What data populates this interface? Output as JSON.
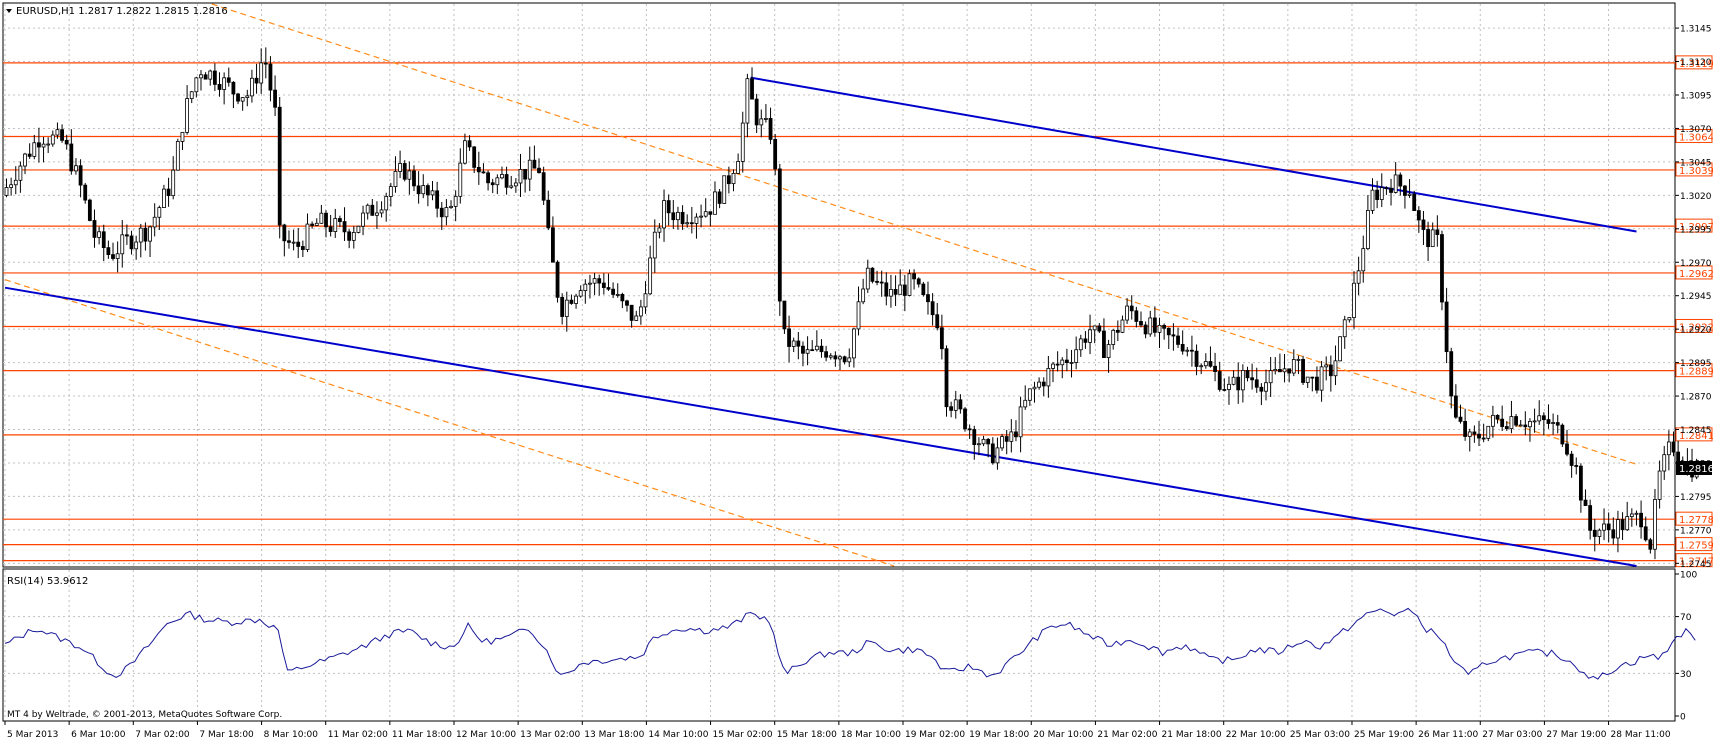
{
  "chart_info": "EURUSD,H1  1.2817 1.2822 1.2815 1.2816",
  "rsi_info": "RSI(14) 53.9612",
  "watermark": "MT 4 by Weltrade, © 2001-2013, MetaQuotes Software Corp.",
  "colors": {
    "background": "#ffffff",
    "grid": "#c0c0c0",
    "candle": "#000000",
    "level_line": "#ff4400",
    "level_label": "#ff4400",
    "channel_line": "#0000cc",
    "fib_line": "#ff8c1a",
    "rsi_line": "#1a1a99",
    "price_badge": "#000000"
  },
  "chart_data": [
    {
      "type": "candlestick",
      "title": "EURUSD,H1",
      "symbol": "EURUSD",
      "timeframe": "H1",
      "ohlc_current": {
        "open": 1.2817,
        "high": 1.2822,
        "low": 1.2815,
        "close": 1.2816
      },
      "current_price": "1.2816",
      "ylim": [
        1.2743,
        1.3163
      ],
      "x_range": [
        0,
        1080
      ],
      "y_ticks": [
        "1.3145",
        "1.3120",
        "1.3095",
        "1.3070",
        "1.3045",
        "1.3020",
        "1.2995",
        "1.2970",
        "1.2945",
        "1.2920",
        "1.2895",
        "1.2870",
        "1.2845",
        "1.2820",
        "1.2795",
        "1.2770",
        "1.2745"
      ],
      "x_tick_labels": [
        "5 Mar 2013",
        "6 Mar 10:00",
        "7 Mar 02:00",
        "7 Mar 18:00",
        "8 Mar 10:00",
        "11 Mar 02:00",
        "11 Mar 18:00",
        "12 Mar 10:00",
        "13 Mar 02:00",
        "13 Mar 18:00",
        "14 Mar 10:00",
        "15 Mar 02:00",
        "15 Mar 18:00",
        "18 Mar 10:00",
        "19 Mar 02:00",
        "19 Mar 18:00",
        "20 Mar 10:00",
        "21 Mar 02:00",
        "21 Mar 18:00",
        "22 Mar 10:00",
        "25 Mar 03:00",
        "25 Mar 19:00",
        "26 Mar 11:00",
        "27 Mar 03:00",
        "27 Mar 19:00",
        "28 Mar 11:00"
      ],
      "grid": true,
      "horizontal_levels": [
        "1.3119",
        "1.3064",
        "1.3039",
        "1.2997",
        "1.2962",
        "1.2922",
        "1.2889",
        "1.2841",
        "1.2778",
        "1.2759",
        "1.2747"
      ],
      "channel_lines": [
        {
          "from": [
            483,
            1.3108
          ],
          "to": [
            1057,
            1.2993
          ]
        },
        {
          "from": [
            0,
            1.2951
          ],
          "to": [
            1057,
            1.2743
          ]
        }
      ],
      "fib_lines": [
        {
          "from": [
            134,
            1.3163
          ],
          "to": [
            1057,
            1.2819
          ]
        },
        {
          "from": [
            0,
            1.2957
          ],
          "to": [
            576,
            1.2743
          ]
        }
      ],
      "price_anchors": [
        [
          0,
          1.302
        ],
        [
          10,
          1.304
        ],
        [
          25,
          1.3065
        ],
        [
          40,
          1.306
        ],
        [
          50,
          1.303
        ],
        [
          60,
          1.299
        ],
        [
          70,
          1.2975
        ],
        [
          80,
          1.2985
        ],
        [
          95,
          1.2995
        ],
        [
          110,
          1.303
        ],
        [
          118,
          1.308
        ],
        [
          128,
          1.3115
        ],
        [
          140,
          1.3108
        ],
        [
          150,
          1.3098
        ],
        [
          160,
          1.3095
        ],
        [
          170,
          1.3125
        ],
        [
          178,
          1.3075
        ],
        [
          180,
          1.299
        ],
        [
          190,
          1.298
        ],
        [
          205,
          1.3
        ],
        [
          225,
          1.2993
        ],
        [
          245,
          1.3015
        ],
        [
          260,
          1.304
        ],
        [
          275,
          1.302
        ],
        [
          290,
          1.3005
        ],
        [
          300,
          1.3055
        ],
        [
          315,
          1.303
        ],
        [
          330,
          1.3035
        ],
        [
          348,
          1.304
        ],
        [
          355,
          1.298
        ],
        [
          362,
          1.2935
        ],
        [
          375,
          1.2955
        ],
        [
          390,
          1.2955
        ],
        [
          400,
          1.294
        ],
        [
          412,
          1.2925
        ],
        [
          418,
          1.296
        ],
        [
          428,
          1.301
        ],
        [
          440,
          1.3005
        ],
        [
          458,
          1.301
        ],
        [
          470,
          1.303
        ],
        [
          478,
          1.3055
        ],
        [
          483,
          1.31
        ],
        [
          490,
          1.3075
        ],
        [
          500,
          1.3065
        ],
        [
          505,
          1.2915
        ],
        [
          520,
          1.29
        ],
        [
          535,
          1.2905
        ],
        [
          548,
          1.29
        ],
        [
          560,
          1.296
        ],
        [
          575,
          1.2945
        ],
        [
          590,
          1.2955
        ],
        [
          600,
          1.2935
        ],
        [
          608,
          1.2925
        ],
        [
          612,
          1.287
        ],
        [
          625,
          1.285
        ],
        [
          640,
          1.2825
        ],
        [
          655,
          1.284
        ],
        [
          665,
          1.287
        ],
        [
          680,
          1.289
        ],
        [
          692,
          1.29
        ],
        [
          705,
          1.292
        ],
        [
          715,
          1.2905
        ],
        [
          730,
          1.2935
        ],
        [
          750,
          1.2915
        ],
        [
          765,
          1.291
        ],
        [
          783,
          1.289
        ],
        [
          795,
          1.2875
        ],
        [
          805,
          1.2885
        ],
        [
          820,
          1.288
        ],
        [
          835,
          1.2895
        ],
        [
          850,
          1.288
        ],
        [
          862,
          1.289
        ],
        [
          870,
          1.292
        ],
        [
          878,
          1.296
        ],
        [
          888,
          1.302
        ],
        [
          900,
          1.303
        ],
        [
          912,
          1.3025
        ],
        [
          920,
          1.299
        ],
        [
          930,
          1.2985
        ],
        [
          935,
          1.292
        ],
        [
          940,
          1.2855
        ],
        [
          952,
          1.2835
        ],
        [
          965,
          1.285
        ],
        [
          980,
          1.2855
        ],
        [
          992,
          1.285
        ],
        [
          1002,
          1.285
        ],
        [
          1012,
          1.284
        ],
        [
          1020,
          1.2815
        ],
        [
          1028,
          1.277
        ],
        [
          1040,
          1.277
        ],
        [
          1052,
          1.2775
        ],
        [
          1062,
          1.278
        ],
        [
          1068,
          1.276
        ],
        [
          1074,
          1.281
        ],
        [
          1082,
          1.2835
        ],
        [
          1090,
          1.282
        ],
        [
          1097,
          1.2816
        ]
      ]
    },
    {
      "type": "line",
      "title": "RSI(14) 53.9612",
      "series": [
        {
          "name": "RSI(14)",
          "last_value": 53.9612
        }
      ],
      "ylim": [
        0,
        100
      ],
      "y_ticks": [
        "100",
        "70",
        "30",
        "0"
      ],
      "levels": [
        70,
        30
      ],
      "rsi_anchors": [
        [
          0,
          50
        ],
        [
          20,
          62
        ],
        [
          35,
          55
        ],
        [
          50,
          48
        ],
        [
          60,
          38
        ],
        [
          70,
          28
        ],
        [
          80,
          34
        ],
        [
          95,
          52
        ],
        [
          105,
          65
        ],
        [
          118,
          72
        ],
        [
          130,
          68
        ],
        [
          145,
          66
        ],
        [
          165,
          68
        ],
        [
          178,
          60
        ],
        [
          182,
          30
        ],
        [
          192,
          34
        ],
        [
          210,
          40
        ],
        [
          230,
          48
        ],
        [
          250,
          58
        ],
        [
          262,
          60
        ],
        [
          275,
          52
        ],
        [
          290,
          48
        ],
        [
          300,
          63
        ],
        [
          310,
          52
        ],
        [
          325,
          55
        ],
        [
          340,
          62
        ],
        [
          350,
          48
        ],
        [
          360,
          28
        ],
        [
          375,
          38
        ],
        [
          395,
          40
        ],
        [
          412,
          42
        ],
        [
          420,
          55
        ],
        [
          430,
          60
        ],
        [
          440,
          62
        ],
        [
          455,
          60
        ],
        [
          470,
          63
        ],
        [
          483,
          72
        ],
        [
          495,
          68
        ],
        [
          505,
          29
        ],
        [
          520,
          40
        ],
        [
          535,
          45
        ],
        [
          548,
          44
        ],
        [
          560,
          52
        ],
        [
          575,
          46
        ],
        [
          590,
          47
        ],
        [
          600,
          42
        ],
        [
          610,
          30
        ],
        [
          625,
          35
        ],
        [
          640,
          28
        ],
        [
          655,
          42
        ],
        [
          668,
          55
        ],
        [
          678,
          63
        ],
        [
          688,
          65
        ],
        [
          700,
          58
        ],
        [
          715,
          50
        ],
        [
          730,
          54
        ],
        [
          750,
          45
        ],
        [
          765,
          50
        ],
        [
          780,
          40
        ],
        [
          795,
          39
        ],
        [
          810,
          47
        ],
        [
          825,
          45
        ],
        [
          840,
          53
        ],
        [
          852,
          49
        ],
        [
          862,
          55
        ],
        [
          870,
          62
        ],
        [
          880,
          70
        ],
        [
          890,
          75
        ],
        [
          900,
          72
        ],
        [
          912,
          74
        ],
        [
          920,
          62
        ],
        [
          930,
          55
        ],
        [
          938,
          40
        ],
        [
          948,
          28
        ],
        [
          960,
          38
        ],
        [
          975,
          42
        ],
        [
          990,
          45
        ],
        [
          1002,
          44
        ],
        [
          1012,
          40
        ],
        [
          1022,
          32
        ],
        [
          1030,
          25
        ],
        [
          1045,
          35
        ],
        [
          1055,
          38
        ],
        [
          1065,
          43
        ],
        [
          1072,
          40
        ],
        [
          1080,
          52
        ],
        [
          1088,
          60
        ],
        [
          1097,
          54
        ]
      ]
    }
  ]
}
